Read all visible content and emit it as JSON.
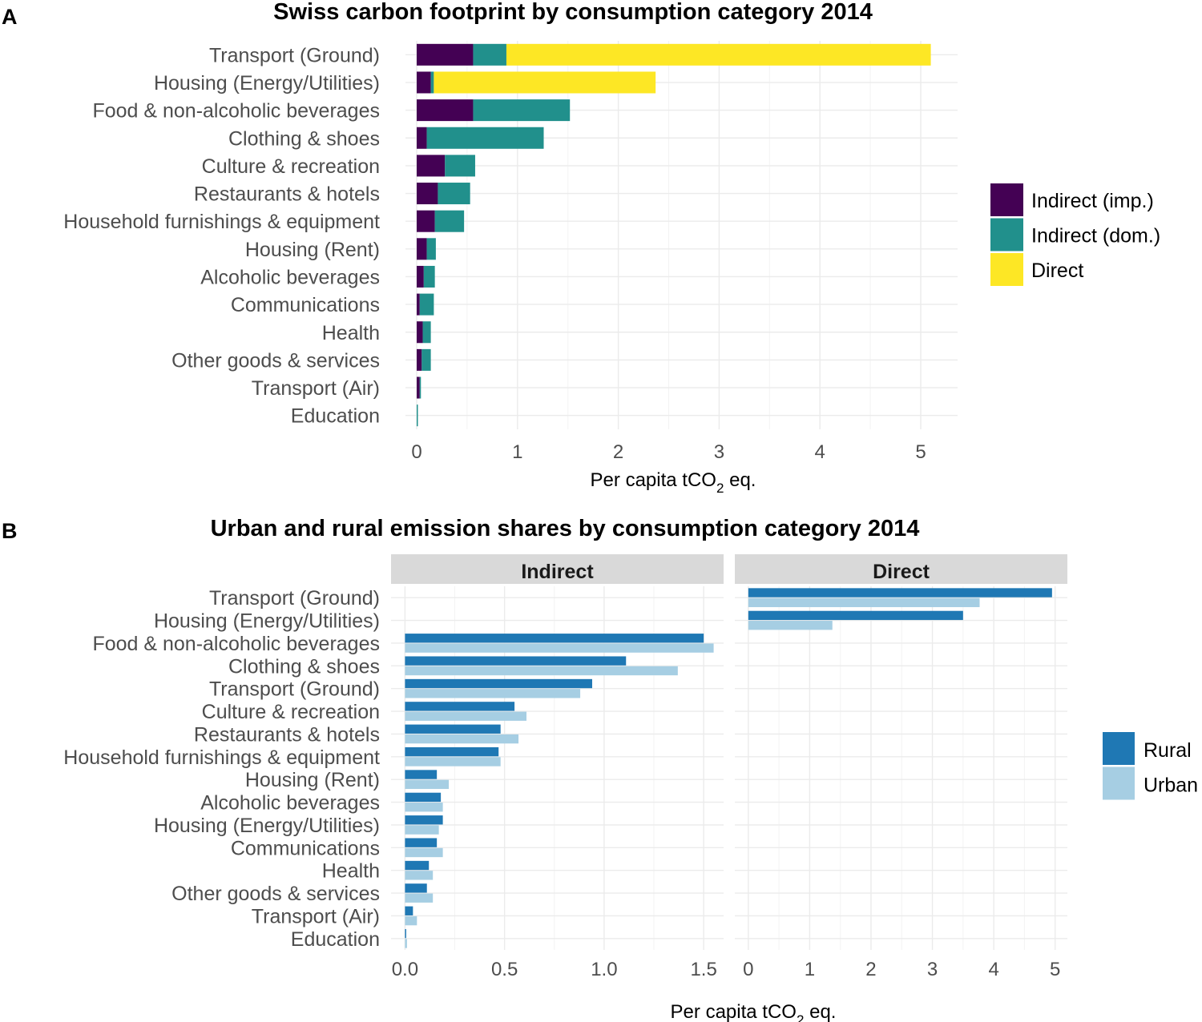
{
  "chart_data": [
    {
      "type": "bar",
      "orientation": "horizontal",
      "stacked": true,
      "panel_label": "A",
      "title": "Swiss carbon footprint by consumption category 2014",
      "xlabel_main": "Per capita tCO",
      "xlabel_sub": "2",
      "xlabel_end": " eq.",
      "categories": [
        "Transport (Ground)",
        "Housing (Energy/Utilities)",
        "Food & non-alcoholic beverages",
        "Clothing & shoes",
        "Culture & recreation",
        "Restaurants & hotels",
        "Household furnishings & equipment",
        "Housing (Rent)",
        "Alcoholic beverages",
        "Communications",
        "Health",
        "Other goods & services",
        "Transport (Air)",
        "Education"
      ],
      "series": [
        {
          "name": "Indirect (imp.)",
          "color": "#440154",
          "values": [
            0.56,
            0.14,
            0.56,
            0.1,
            0.28,
            0.21,
            0.18,
            0.1,
            0.07,
            0.03,
            0.06,
            0.05,
            0.03,
            0.0
          ]
        },
        {
          "name": "Indirect (dom.)",
          "color": "#21908C",
          "values": [
            0.33,
            0.03,
            0.96,
            1.16,
            0.3,
            0.32,
            0.29,
            0.09,
            0.11,
            0.14,
            0.08,
            0.09,
            0.01,
            0.01
          ]
        },
        {
          "name": "Direct",
          "color": "#FDE725",
          "values": [
            4.21,
            2.2,
            0,
            0,
            0,
            0,
            0,
            0,
            0,
            0,
            0,
            0,
            0,
            0
          ]
        }
      ],
      "xlim": [
        0,
        5.35
      ],
      "xticks": [
        0,
        1,
        2,
        3,
        4,
        5
      ],
      "xtick_labels": [
        "0",
        "1",
        "2",
        "3",
        "4",
        "5"
      ],
      "grid": true,
      "legend_position": "right"
    },
    {
      "type": "bar",
      "orientation": "horizontal",
      "grouped": true,
      "panel_label": "B",
      "title": "Urban and rural emission shares by consumption category 2014",
      "xlabel_main": "Per capita tCO",
      "xlabel_sub": "2",
      "xlabel_end": " eq.",
      "categories": [
        "Transport (Ground)",
        "Housing (Energy/Utilities)",
        "Food & non-alcoholic beverages",
        "Clothing & shoes",
        "Transport (Ground)",
        "Culture & recreation",
        "Restaurants & hotels",
        "Household furnishings & equipment",
        "Housing (Rent)",
        "Alcoholic beverages",
        "Housing (Energy/Utilities)",
        "Communications",
        "Health",
        "Other goods & services",
        "Transport (Air)",
        "Education"
      ],
      "legend": [
        {
          "name": "Rural",
          "color": "#1F78B4"
        },
        {
          "name": "Urban",
          "color": "#A6CEE3"
        }
      ],
      "facets": [
        {
          "name": "Indirect",
          "xlim": [
            -0.07,
            1.6
          ],
          "xticks": [
            0.0,
            0.5,
            1.0,
            1.5
          ],
          "xtick_labels": [
            "0.0",
            "0.5",
            "1.0",
            "1.5"
          ],
          "rural": [
            null,
            null,
            1.5,
            1.11,
            0.94,
            0.55,
            0.48,
            0.47,
            0.16,
            0.18,
            0.19,
            0.16,
            0.12,
            0.11,
            0.04,
            0.005
          ],
          "urban": [
            null,
            null,
            1.55,
            1.37,
            0.88,
            0.61,
            0.57,
            0.48,
            0.22,
            0.19,
            0.17,
            0.19,
            0.14,
            0.14,
            0.06,
            0.01
          ]
        },
        {
          "name": "Direct",
          "xlim": [
            -0.22,
            5.2
          ],
          "xticks": [
            0,
            1,
            2,
            3,
            4,
            5
          ],
          "xtick_labels": [
            "0",
            "1",
            "2",
            "3",
            "4",
            "5"
          ],
          "rural": [
            4.95,
            3.5,
            null,
            null,
            null,
            null,
            null,
            null,
            null,
            null,
            null,
            null,
            null,
            null,
            null,
            null
          ],
          "urban": [
            3.77,
            1.37,
            null,
            null,
            null,
            null,
            null,
            null,
            null,
            null,
            null,
            null,
            null,
            null,
            null,
            null
          ]
        }
      ],
      "grid": true,
      "legend_position": "right"
    }
  ]
}
